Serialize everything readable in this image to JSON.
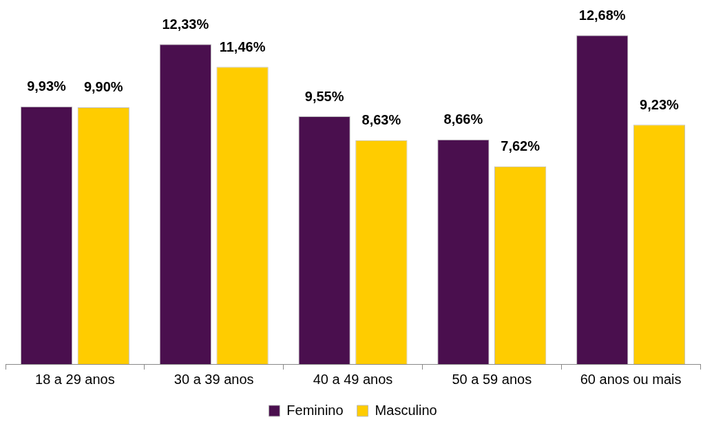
{
  "chart_data": {
    "type": "bar",
    "categories": [
      "18 a 29 anos",
      "30 a 39 anos",
      "40 a 49 anos",
      "50 a 59 anos",
      "60 anos ou mais"
    ],
    "series": [
      {
        "name": "Feminino",
        "color": "#4a0f4e",
        "values": [
          9.93,
          12.33,
          9.55,
          8.66,
          12.68
        ],
        "value_labels": [
          "9,93%",
          "12,33%",
          "9,55%",
          "8,66%",
          "12,68%"
        ]
      },
      {
        "name": "Masculino",
        "color": "#ffcc00",
        "values": [
          9.9,
          11.46,
          8.63,
          7.62,
          9.23
        ],
        "value_labels": [
          "9,90%",
          "11,46%",
          "8,63%",
          "7,62%",
          "9,23%"
        ]
      }
    ],
    "legend": "bottom",
    "tick_labels": "x"
  }
}
